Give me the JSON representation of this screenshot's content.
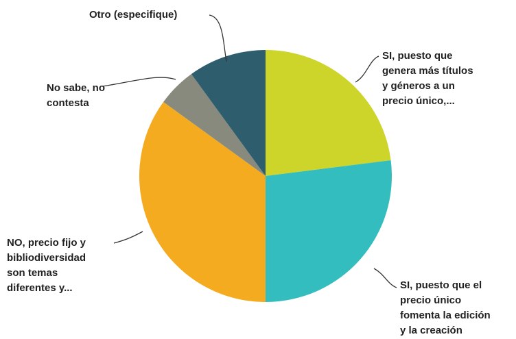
{
  "chart_data": {
    "type": "pie",
    "categories": [
      [
        "SI, puesto que",
        "genera más títulos",
        "y géneros a un",
        "precio único,..."
      ],
      [
        "SI, puesto que el",
        "precio único",
        "fomenta la edición",
        "y la creación"
      ],
      [
        "NO, precio fijo y",
        "bibliodiversidad",
        "son temas",
        "diferentes y..."
      ],
      [
        "No sabe, no",
        "contesta"
      ],
      [
        "Otro (especifique)"
      ]
    ],
    "values": [
      23,
      27,
      35,
      5,
      10
    ],
    "colors": [
      "#cdd42a",
      "#33bdbf",
      "#f5ab1f",
      "#878a7c",
      "#2e5e6e"
    ]
  }
}
